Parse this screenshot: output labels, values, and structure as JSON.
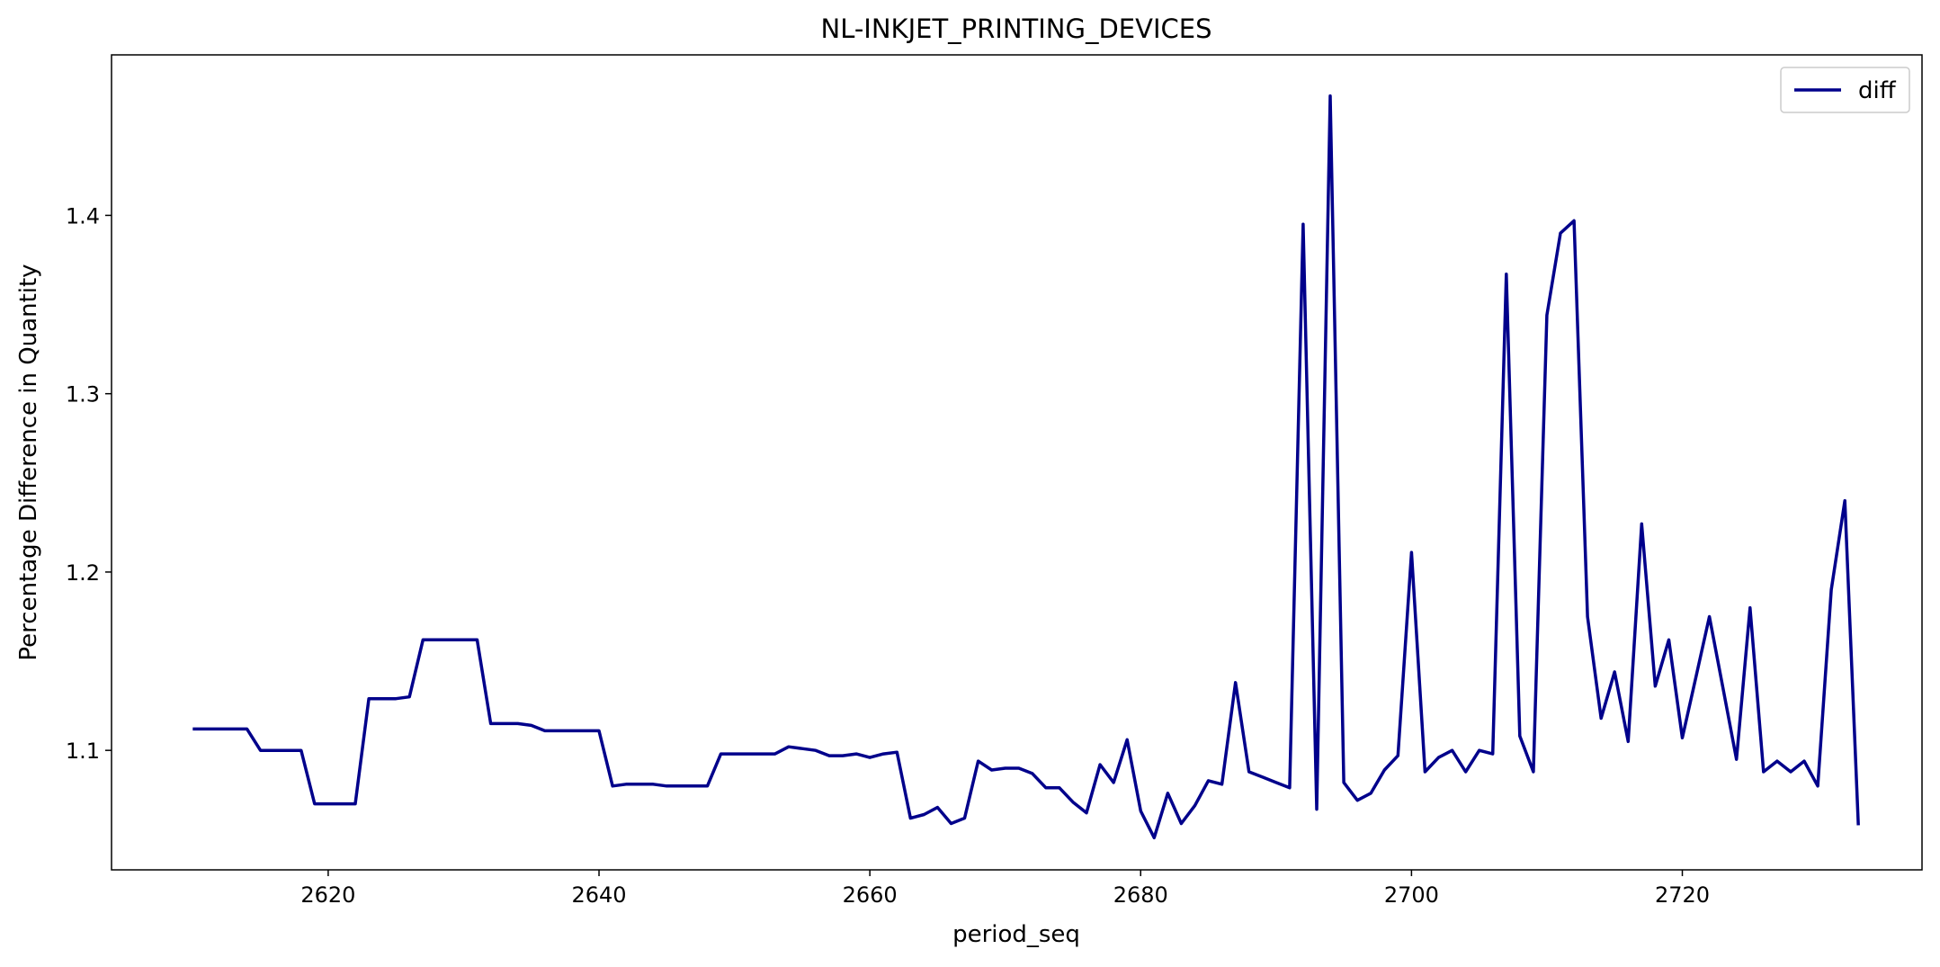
{
  "chart_data": {
    "type": "line",
    "title": "NL-INKJET_PRINTING_DEVICES",
    "xlabel": "period_seq",
    "ylabel": "Percentage Difference in Quantity",
    "xlim": [
      2604,
      2737.7
    ],
    "ylim": [
      1.033,
      1.49
    ],
    "xticks": [
      2620,
      2640,
      2660,
      2680,
      2700,
      2720
    ],
    "yticks": [
      1.1,
      1.2,
      1.3,
      1.4
    ],
    "xtick_labels": [
      "2620",
      "2640",
      "2660",
      "2680",
      "2700",
      "2720"
    ],
    "ytick_labels": [
      "1.1",
      "1.2",
      "1.3",
      "1.4"
    ],
    "grid": false,
    "legend_position": "upper right",
    "series": [
      {
        "name": "diff",
        "color": "#00008b",
        "x": [
          2610,
          2611,
          2612,
          2613,
          2614,
          2615,
          2616,
          2617,
          2618,
          2619,
          2620,
          2621,
          2622,
          2623,
          2624,
          2625,
          2626,
          2627,
          2628,
          2629,
          2630,
          2631,
          2632,
          2633,
          2634,
          2635,
          2636,
          2637,
          2638,
          2639,
          2640,
          2641,
          2642,
          2643,
          2644,
          2645,
          2646,
          2647,
          2648,
          2649,
          2650,
          2651,
          2652,
          2653,
          2654,
          2655,
          2656,
          2657,
          2658,
          2659,
          2660,
          2661,
          2662,
          2663,
          2664,
          2665,
          2666,
          2667,
          2668,
          2669,
          2670,
          2671,
          2672,
          2673,
          2674,
          2675,
          2676,
          2677,
          2678,
          2679,
          2680,
          2681,
          2682,
          2683,
          2684,
          2685,
          2686,
          2687,
          2688,
          2689,
          2690,
          2691,
          2692,
          2693,
          2694,
          2695,
          2696,
          2697,
          2698,
          2699,
          2700,
          2701,
          2702,
          2703,
          2704,
          2705,
          2706,
          2707,
          2708,
          2709,
          2710,
          2711,
          2712,
          2713,
          2714,
          2715,
          2716,
          2717,
          2718,
          2719,
          2720,
          2721,
          2722,
          2723,
          2724,
          2725,
          2726,
          2727,
          2728,
          2729,
          2730,
          2731,
          2732,
          2733
        ],
        "values": [
          1.112,
          1.112,
          1.112,
          1.112,
          1.112,
          1.1,
          1.1,
          1.1,
          1.1,
          1.07,
          1.07,
          1.07,
          1.07,
          1.129,
          1.129,
          1.129,
          1.13,
          1.162,
          1.162,
          1.162,
          1.162,
          1.162,
          1.115,
          1.115,
          1.115,
          1.114,
          1.111,
          1.111,
          1.111,
          1.111,
          1.111,
          1.08,
          1.081,
          1.081,
          1.081,
          1.08,
          1.08,
          1.08,
          1.08,
          1.098,
          1.098,
          1.098,
          1.098,
          1.098,
          1.102,
          1.101,
          1.1,
          1.097,
          1.097,
          1.098,
          1.096,
          1.098,
          1.099,
          1.062,
          1.064,
          1.068,
          1.059,
          1.062,
          1.094,
          1.089,
          1.09,
          1.09,
          1.087,
          1.079,
          1.079,
          1.071,
          1.065,
          1.092,
          1.082,
          1.106,
          1.066,
          1.051,
          1.076,
          1.059,
          1.069,
          1.083,
          1.081,
          1.138,
          1.088,
          1.085,
          1.082,
          1.079,
          1.395,
          1.067,
          1.467,
          1.082,
          1.072,
          1.076,
          1.089,
          1.097,
          1.211,
          1.088,
          1.096,
          1.1,
          1.088,
          1.1,
          1.098,
          1.367,
          1.108,
          1.088,
          1.344,
          1.39,
          1.397,
          1.175,
          1.118,
          1.144,
          1.105,
          1.227,
          1.136,
          1.162,
          1.107,
          1.141,
          1.175,
          1.135,
          1.095,
          1.18,
          1.088,
          1.094,
          1.088,
          1.094,
          1.08,
          1.19,
          1.24,
          1.058
        ]
      }
    ]
  }
}
